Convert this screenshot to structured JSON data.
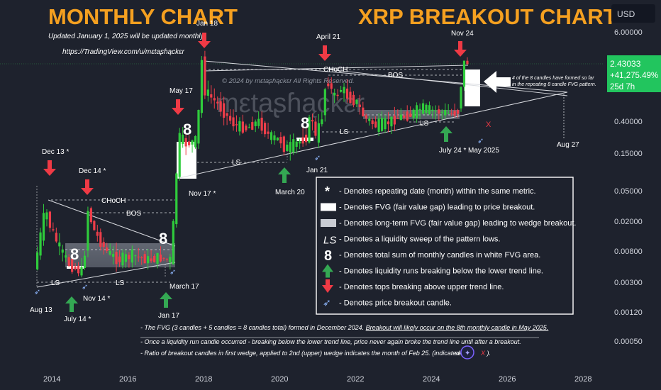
{
  "header": {
    "left_title": "MONTHLY CHART",
    "right_title": "XRP BREAKOUT CHART",
    "updated_note": "Updated January 1, 2025 will be updated monthly.",
    "profile_url": "https://TradingView.com/u/mεtaʂɦąckεr",
    "watermark_copyright": "© 2024 by mεtaʂɦąckεr All Rights Reserved.",
    "watermark_name": "mεtaʂɦąckεr"
  },
  "price_axis": {
    "currency_button": "USD",
    "ticks": [
      "6.00000",
      "0.40000",
      "0.15000",
      "0.05000",
      "0.02000",
      "0.00800",
      "0.00300",
      "0.00120",
      "0.00050"
    ],
    "current_price": "2.43033",
    "current_change": "+41,275.49%",
    "countdown": "25d 7h"
  },
  "time_axis": {
    "ticks": [
      "2014",
      "2016",
      "2018",
      "2020",
      "2022",
      "2024",
      "2026",
      "2028"
    ]
  },
  "annotations": {
    "dec13": "Dec 13 *",
    "dec14": "Dec 14 *",
    "jan18": "Jan 18",
    "may17": "May 17",
    "april21": "April 21",
    "nov24": "Nov 24",
    "aug13": "Aug 13",
    "july14": "July 14 *",
    "nov14": "Nov 14 *",
    "jan17": "Jan 17",
    "march17": "March 17",
    "nov17": "Nov 17 *",
    "jan21": "Jan 21",
    "march20": "March 20",
    "july24": "July 24 *",
    "may2025": "May 2025",
    "aug27": "Aug 27",
    "choch": "CHoCH",
    "bos": "BOS",
    "ls": "LS",
    "eight": "8",
    "x_mark": "X",
    "fvg_note_line1": "4 of the 8 candles have formed so far",
    "fvg_note_line2": "in the repeating 8 candle FVG pattern."
  },
  "legend": {
    "items": [
      {
        "symbol": "*",
        "text": "- Denotes repeating date (month) within the same metric."
      },
      {
        "symbol": "fvg-white",
        "text": "- Denotes FVG (fair value gap) leading to price breakout."
      },
      {
        "symbol": "fvg-gray",
        "text": "- Denotes long-term FVG (fair value gap) leading to wedge breakout."
      },
      {
        "symbol": "LS",
        "text": "- Denotes a liquidity sweep of the pattern lows."
      },
      {
        "symbol": "8",
        "text": "- Denotes total sum of monthly candles in white FVG area."
      },
      {
        "symbol": "green-arrow",
        "text": "- Denotes liquidity runs breaking below the lower trend line."
      },
      {
        "symbol": "red-arrow",
        "text": "- Denotes tops breaking above upper trend line."
      },
      {
        "symbol": "rocket",
        "text": "- Denotes price breakout candle."
      }
    ]
  },
  "notes": {
    "line1_a": "- The FVG (3 candles + 5 candles = 8 candles total) formed in December 2024. ",
    "line1_b": "Breakout will likely occur on the 8th monthly candle in May 2025.",
    "line2": "- Once a liquidity run candle occurred - breaking below the lower trend line, price never again broke the trend line until after a breakout.",
    "line3": "- Ratio of breakout candles in first wedge, applied to 2nd (upper) wedge indicates the month of Feb 25. (indicated",
    "line3_end": "X ).",
    "line3_gap": "se"
  },
  "colors": {
    "background": "#1e222d",
    "title_orange": "#f5a020",
    "up_candle": "#2fcc3c",
    "down_candle": "#ee3e4a",
    "price_label": "#22c55e",
    "arrow_red": "#ef3a45",
    "arrow_green": "#34a853"
  },
  "chart_data": {
    "type": "candlestick",
    "title": "XRP BREAKOUT CHART",
    "interval": "monthly",
    "y_scale": "log",
    "y_ticks": [
      6.0,
      0.4,
      0.15,
      0.05,
      0.02,
      0.008,
      0.003,
      0.0012,
      0.0005
    ],
    "x_ticks": [
      2014,
      2016,
      2018,
      2020,
      2022,
      2024,
      2026,
      2028
    ],
    "last_price": 2.43033,
    "key_points": [
      {
        "label": "Aug 13",
        "date": "2013-08",
        "value": 0.0032
      },
      {
        "label": "Dec 13 *",
        "date": "2013-12",
        "value": 0.058
      },
      {
        "label": "July 14 *",
        "date": "2014-07",
        "value": 0.0045
      },
      {
        "label": "Nov 14 *",
        "date": "2014-11",
        "value": 0.004
      },
      {
        "label": "Dec 14 *",
        "date": "2014-12",
        "value": 0.029
      },
      {
        "label": "March 17",
        "date": "2017-03",
        "value": 0.0065
      },
      {
        "label": "May 17",
        "date": "2017-05",
        "value": 0.4
      },
      {
        "label": "Nov 17 *",
        "date": "2017-11",
        "value": 0.23
      },
      {
        "label": "Jan 18",
        "date": "2018-01",
        "value": 3.3
      },
      {
        "label": "March 20",
        "date": "2020-03",
        "value": 0.12
      },
      {
        "label": "Jan 21",
        "date": "2021-01",
        "value": 0.17
      },
      {
        "label": "April 21",
        "date": "2021-04",
        "value": 1.96
      },
      {
        "label": "July 24 *",
        "date": "2024-07",
        "value": 0.38
      },
      {
        "label": "Nov 24",
        "date": "2024-11",
        "value": 2.9
      },
      {
        "label": "May 2025",
        "date": "2025-05",
        "value": null
      },
      {
        "label": "Aug 27",
        "date": "2027-08",
        "value": null
      }
    ]
  }
}
